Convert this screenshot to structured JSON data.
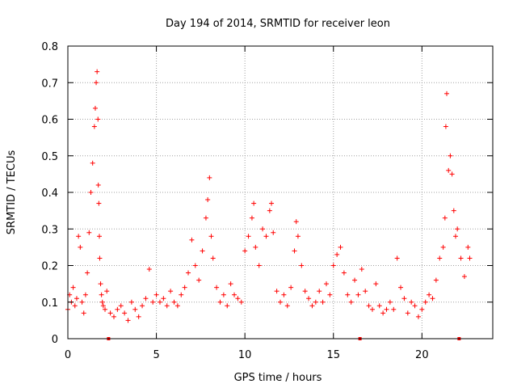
{
  "chart_data": {
    "type": "scatter",
    "title": "Day 194 of 2014, SRMTID for receiver leon",
    "xlabel": "GPS time / hours",
    "ylabel": "SRMTID / TECUs",
    "xlim": [
      0,
      24
    ],
    "ylim": [
      0,
      0.8
    ],
    "xticks": [
      0,
      5,
      10,
      15,
      20
    ],
    "yticks": [
      0,
      0.1,
      0.2,
      0.3,
      0.4,
      0.5,
      0.6,
      0.7,
      0.8
    ],
    "grid": true,
    "marker": "+",
    "color": "#ff0000",
    "baseline_markers": [
      2.3,
      16.5,
      22.1
    ],
    "series": [
      {
        "name": "SRMTID",
        "x": [
          0.0,
          0.1,
          0.2,
          0.3,
          0.4,
          0.5,
          0.6,
          0.7,
          0.8,
          0.9,
          1.0,
          1.1,
          1.2,
          1.3,
          1.4,
          1.5,
          1.55,
          1.6,
          1.65,
          1.7,
          1.72,
          1.75,
          1.78,
          1.8,
          1.85,
          1.9,
          1.95,
          2.0,
          2.1,
          2.2,
          2.4,
          2.6,
          2.8,
          3.0,
          3.2,
          3.4,
          3.6,
          3.8,
          4.0,
          4.2,
          4.4,
          4.6,
          4.8,
          5.0,
          5.2,
          5.4,
          5.6,
          5.8,
          6.0,
          6.2,
          6.4,
          6.6,
          6.8,
          7.0,
          7.2,
          7.4,
          7.6,
          7.8,
          7.9,
          8.0,
          8.1,
          8.2,
          8.4,
          8.6,
          8.8,
          9.0,
          9.2,
          9.4,
          9.6,
          9.8,
          10.0,
          10.2,
          10.4,
          10.5,
          10.6,
          10.8,
          11.0,
          11.2,
          11.4,
          11.5,
          11.6,
          11.8,
          12.0,
          12.2,
          12.4,
          12.6,
          12.8,
          12.9,
          13.0,
          13.2,
          13.4,
          13.6,
          13.8,
          14.0,
          14.2,
          14.4,
          14.6,
          14.8,
          15.0,
          15.2,
          15.4,
          15.6,
          15.8,
          16.0,
          16.2,
          16.4,
          16.6,
          16.8,
          17.0,
          17.2,
          17.4,
          17.6,
          17.8,
          18.0,
          18.2,
          18.4,
          18.6,
          18.8,
          19.0,
          19.2,
          19.4,
          19.6,
          19.8,
          20.0,
          20.2,
          20.4,
          20.6,
          20.8,
          21.0,
          21.2,
          21.3,
          21.35,
          21.4,
          21.5,
          21.6,
          21.7,
          21.8,
          21.9,
          22.0,
          22.2,
          22.4,
          22.6,
          22.7
        ],
        "y": [
          0.08,
          0.12,
          0.1,
          0.14,
          0.09,
          0.11,
          0.28,
          0.25,
          0.1,
          0.07,
          0.12,
          0.18,
          0.29,
          0.4,
          0.48,
          0.58,
          0.63,
          0.7,
          0.73,
          0.6,
          0.42,
          0.37,
          0.28,
          0.22,
          0.15,
          0.12,
          0.1,
          0.09,
          0.08,
          0.13,
          0.07,
          0.06,
          0.08,
          0.09,
          0.07,
          0.05,
          0.1,
          0.08,
          0.06,
          0.09,
          0.11,
          0.19,
          0.1,
          0.12,
          0.1,
          0.11,
          0.09,
          0.13,
          0.1,
          0.09,
          0.12,
          0.14,
          0.18,
          0.27,
          0.2,
          0.16,
          0.24,
          0.33,
          0.38,
          0.44,
          0.28,
          0.22,
          0.14,
          0.1,
          0.12,
          0.09,
          0.15,
          0.12,
          0.11,
          0.1,
          0.24,
          0.28,
          0.33,
          0.37,
          0.25,
          0.2,
          0.3,
          0.28,
          0.35,
          0.37,
          0.29,
          0.13,
          0.1,
          0.12,
          0.09,
          0.14,
          0.24,
          0.32,
          0.28,
          0.2,
          0.13,
          0.11,
          0.09,
          0.1,
          0.13,
          0.1,
          0.15,
          0.12,
          0.2,
          0.23,
          0.25,
          0.18,
          0.12,
          0.1,
          0.16,
          0.12,
          0.19,
          0.13,
          0.09,
          0.08,
          0.15,
          0.09,
          0.07,
          0.08,
          0.1,
          0.08,
          0.22,
          0.14,
          0.11,
          0.07,
          0.1,
          0.09,
          0.06,
          0.08,
          0.1,
          0.12,
          0.11,
          0.16,
          0.22,
          0.25,
          0.33,
          0.58,
          0.67,
          0.46,
          0.5,
          0.45,
          0.35,
          0.28,
          0.3,
          0.22,
          0.17,
          0.25,
          0.22
        ]
      }
    ]
  }
}
